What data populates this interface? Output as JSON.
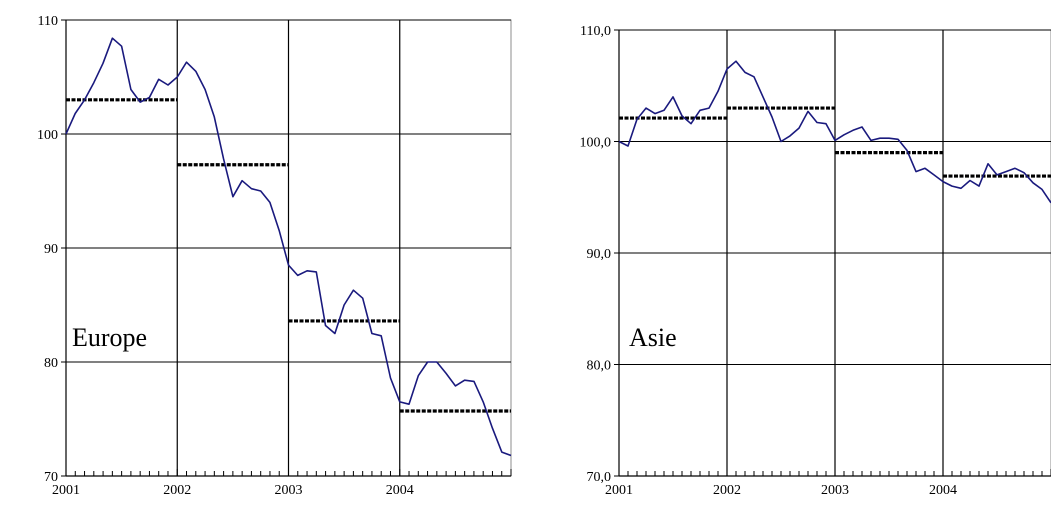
{
  "chart_data": [
    {
      "type": "line",
      "panel_label": "Europe",
      "ylim": [
        70,
        110
      ],
      "yticks": [
        70,
        80,
        90,
        100,
        110
      ],
      "ytick_labels": [
        "70",
        "80",
        "90",
        "100",
        "110"
      ],
      "xlim": [
        2001,
        2005
      ],
      "xticks": [
        2001,
        2002,
        2003,
        2004
      ],
      "xtick_labels": [
        "2001",
        "2002",
        "2003",
        "2004"
      ],
      "grid": true,
      "series": [
        {
          "style": "solid",
          "color": "#1a1a7e",
          "x": [
            2001.0,
            2001.083,
            2001.167,
            2001.25,
            2001.333,
            2001.417,
            2001.5,
            2001.583,
            2001.667,
            2001.75,
            2001.833,
            2001.917,
            2002.0,
            2002.083,
            2002.167,
            2002.25,
            2002.333,
            2002.417,
            2002.5,
            2002.583,
            2002.667,
            2002.75,
            2002.833,
            2002.917,
            2003.0,
            2003.083,
            2003.167,
            2003.25,
            2003.333,
            2003.417,
            2003.5,
            2003.583,
            2003.667,
            2003.75,
            2003.833,
            2003.917,
            2004.0,
            2004.083,
            2004.167,
            2004.25,
            2004.333,
            2004.417,
            2004.5,
            2004.583,
            2004.667,
            2004.75,
            2004.833,
            2004.917,
            2005.0
          ],
          "values": [
            100.0,
            101.8,
            103.0,
            104.5,
            106.2,
            108.4,
            107.7,
            103.9,
            102.8,
            103.2,
            104.8,
            104.3,
            105.0,
            106.3,
            105.5,
            103.9,
            101.5,
            97.8,
            94.5,
            95.9,
            95.2,
            95.0,
            94.0,
            91.5,
            88.5,
            87.6,
            88.0,
            87.9,
            83.2,
            82.5,
            85.0,
            86.3,
            85.6,
            82.5,
            82.3,
            78.6,
            76.5,
            76.3,
            78.8,
            80.0,
            80.0,
            79.0,
            77.9,
            78.4,
            78.3,
            76.5,
            74.2,
            72.1,
            71.8
          ]
        },
        {
          "style": "dashed",
          "color": "#000000",
          "segments": [
            {
              "x": [
                2001,
                2002
              ],
              "y": 103.0
            },
            {
              "x": [
                2002,
                2003
              ],
              "y": 97.3
            },
            {
              "x": [
                2003,
                2004
              ],
              "y": 83.6
            },
            {
              "x": [
                2004,
                2005
              ],
              "y": 75.7
            }
          ]
        }
      ]
    },
    {
      "type": "line",
      "panel_label": "Asie",
      "ylim": [
        70,
        110
      ],
      "yticks": [
        70,
        80,
        90,
        100,
        110
      ],
      "ytick_labels": [
        "70,0",
        "80,0",
        "90,0",
        "100,0",
        "110,0"
      ],
      "xlim": [
        2001,
        2005
      ],
      "xticks": [
        2001,
        2002,
        2003,
        2004
      ],
      "xtick_labels": [
        "2001",
        "2002",
        "2003",
        "2004"
      ],
      "grid": true,
      "series": [
        {
          "style": "solid",
          "color": "#1a1a7e",
          "x": [
            2001.0,
            2001.083,
            2001.167,
            2001.25,
            2001.333,
            2001.417,
            2001.5,
            2001.583,
            2001.667,
            2001.75,
            2001.833,
            2001.917,
            2002.0,
            2002.083,
            2002.167,
            2002.25,
            2002.333,
            2002.417,
            2002.5,
            2002.583,
            2002.667,
            2002.75,
            2002.833,
            2002.917,
            2003.0,
            2003.083,
            2003.167,
            2003.25,
            2003.333,
            2003.417,
            2003.5,
            2003.583,
            2003.667,
            2003.75,
            2003.833,
            2003.917,
            2004.0,
            2004.083,
            2004.167,
            2004.25,
            2004.333,
            2004.417,
            2004.5,
            2004.583,
            2004.667,
            2004.75,
            2004.833,
            2004.917,
            2005.0
          ],
          "values": [
            100.0,
            99.6,
            102.0,
            103.0,
            102.5,
            102.8,
            104.0,
            102.3,
            101.6,
            102.8,
            103.0,
            104.5,
            106.5,
            107.2,
            106.2,
            105.8,
            104.0,
            102.2,
            100.0,
            100.5,
            101.2,
            102.7,
            101.7,
            101.6,
            100.1,
            100.6,
            101.0,
            101.3,
            100.1,
            100.3,
            100.3,
            100.2,
            99.2,
            97.3,
            97.6,
            97.0,
            96.4,
            96.0,
            95.8,
            96.5,
            96.0,
            98.0,
            97.0,
            97.3,
            97.6,
            97.2,
            96.3,
            95.7,
            94.5
          ]
        },
        {
          "style": "dashed",
          "color": "#000000",
          "segments": [
            {
              "x": [
                2001,
                2002
              ],
              "y": 102.1
            },
            {
              "x": [
                2002,
                2003
              ],
              "y": 103.0
            },
            {
              "x": [
                2003,
                2004
              ],
              "y": 99.0
            },
            {
              "x": [
                2004,
                2005
              ],
              "y": 96.9
            }
          ]
        }
      ]
    }
  ]
}
